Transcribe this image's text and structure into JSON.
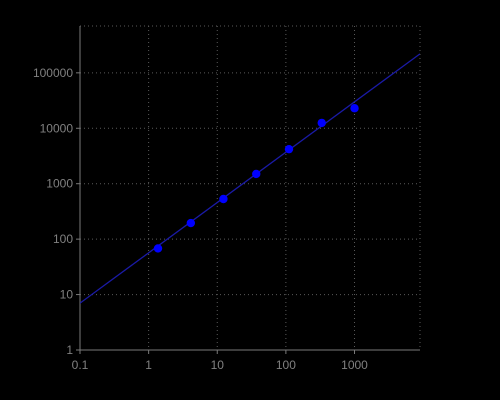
{
  "chart_data": {
    "type": "scatter",
    "title": "",
    "xlabel": "",
    "ylabel": "",
    "x_scale": "log",
    "y_scale": "log",
    "xlim": [
      0.1,
      9000
    ],
    "ylim": [
      1,
      700000
    ],
    "x_ticks": [
      0.1,
      1,
      10,
      100,
      1000
    ],
    "x_tick_labels": [
      "0.1",
      "1",
      "10",
      "100",
      "1000"
    ],
    "y_ticks": [
      1,
      10,
      100,
      1000,
      10000,
      100000
    ],
    "y_tick_labels": [
      "1",
      "10",
      "100",
      "1000",
      "10000",
      "100000"
    ],
    "grid": true,
    "background_color": "#000000",
    "axis_color": "#7a7a7a",
    "tick_label_color": "#808080",
    "series": [
      {
        "kind": "points",
        "color": "#0000ff",
        "x": [
          1.37,
          4.12,
          12.3,
          37,
          111,
          333,
          1000
        ],
        "y": [
          68,
          195,
          530,
          1500,
          4200,
          12500,
          23000
        ]
      },
      {
        "kind": "fit-line",
        "color": "#1a1aa6",
        "x": [
          0.1,
          9000
        ],
        "y": [
          7,
          220000
        ]
      }
    ]
  }
}
